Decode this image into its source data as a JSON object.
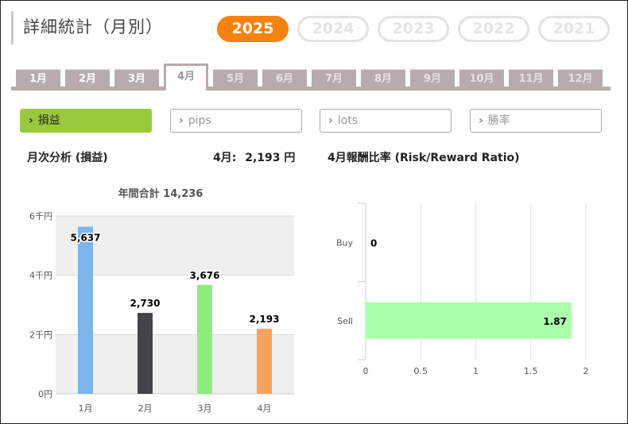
{
  "header": {
    "title": "詳細統計（月別）"
  },
  "years": [
    {
      "label": "2025",
      "active": true
    },
    {
      "label": "2024",
      "active": false
    },
    {
      "label": "2023",
      "active": false
    },
    {
      "label": "2022",
      "active": false
    },
    {
      "label": "2021",
      "active": false
    }
  ],
  "months": [
    {
      "label": "1月",
      "state": "normal"
    },
    {
      "label": "2月",
      "state": "normal"
    },
    {
      "label": "3月",
      "state": "normal"
    },
    {
      "label": "4月",
      "state": "active"
    },
    {
      "label": "5月",
      "state": "dim"
    },
    {
      "label": "6月",
      "state": "dim"
    },
    {
      "label": "7月",
      "state": "dim"
    },
    {
      "label": "8月",
      "state": "dim"
    },
    {
      "label": "9月",
      "state": "dim"
    },
    {
      "label": "10月",
      "state": "dim"
    },
    {
      "label": "11月",
      "state": "dim"
    },
    {
      "label": "12月",
      "state": "dim"
    }
  ],
  "metrics": [
    {
      "label": "損益",
      "active": true
    },
    {
      "label": "pips",
      "active": false
    },
    {
      "label": "lots",
      "active": false
    },
    {
      "label": "勝率",
      "active": false
    }
  ],
  "monthly": {
    "heading": "月次分析 (損益)",
    "current_label": "4月:",
    "current_value": "2,193 円"
  },
  "ratio": {
    "heading": "4月報酬比率 (Risk/Reward Ratio)"
  },
  "chart_data": [
    {
      "type": "bar",
      "title": "年間合計 14,236",
      "categories": [
        "1月",
        "2月",
        "3月",
        "4月"
      ],
      "values": [
        5637,
        2730,
        3676,
        2193
      ],
      "value_labels": [
        "5,637",
        "2,730",
        "3,676",
        "2,193"
      ],
      "colors": [
        "#7cb5ec",
        "#434348",
        "#90ed7d",
        "#f7a35c"
      ],
      "ylim": [
        0,
        6000
      ],
      "yticks": [
        0,
        2000,
        4000,
        6000
      ],
      "ytick_labels": [
        "0円",
        "2千円",
        "4千円",
        "6千円"
      ],
      "grid": "alternating-bands",
      "legend": "none"
    },
    {
      "type": "bar",
      "orientation": "horizontal",
      "categories": [
        "Buy",
        "Sell"
      ],
      "values": [
        0,
        1.87
      ],
      "value_labels": [
        "0",
        "1.87"
      ],
      "colors": [
        "#aaffaa",
        "#aaffaa"
      ],
      "xlim": [
        0,
        2
      ],
      "xticks": [
        0,
        0.5,
        1,
        1.5,
        2
      ],
      "xtick_labels": [
        "0",
        "0.5",
        "1",
        "1.5",
        "2"
      ],
      "grid": "vertical",
      "legend": "none"
    }
  ]
}
